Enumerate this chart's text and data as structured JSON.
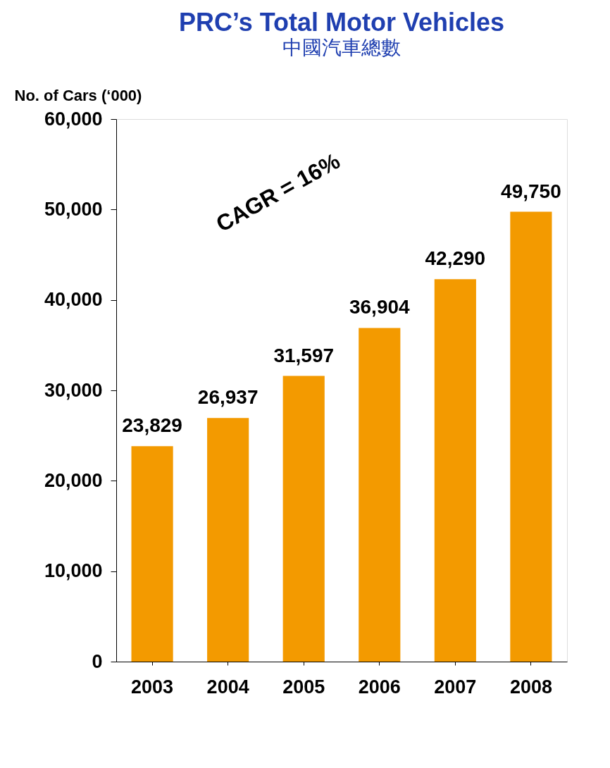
{
  "chart_data": {
    "type": "bar",
    "title": "PRC’s Total Motor Vehicles",
    "subtitle": "中國汽車總數",
    "ylabel": "No. of Cars (‘000)",
    "categories": [
      "2003",
      "2004",
      "2005",
      "2006",
      "2007",
      "2008"
    ],
    "values": [
      23829,
      26937,
      31597,
      36904,
      42290,
      49750
    ],
    "color": "#f39a00",
    "ylim": [
      0,
      60000
    ],
    "yticks": [
      {
        "value": 0,
        "label": "0"
      },
      {
        "value": 10000,
        "label": "10,000"
      },
      {
        "value": 20000,
        "label": "20,000"
      },
      {
        "value": 30000,
        "label": "30,000"
      },
      {
        "value": 40000,
        "label": "40,000"
      },
      {
        "value": 50000,
        "label": "50,000"
      },
      {
        "value": 60000,
        "label": "60,000"
      }
    ],
    "value_labels": [
      "23,829",
      "26,937",
      "31,597",
      "36,904",
      "42,290",
      "49,750"
    ],
    "grid": false,
    "annotations": [
      "CAGR = 16%"
    ]
  }
}
